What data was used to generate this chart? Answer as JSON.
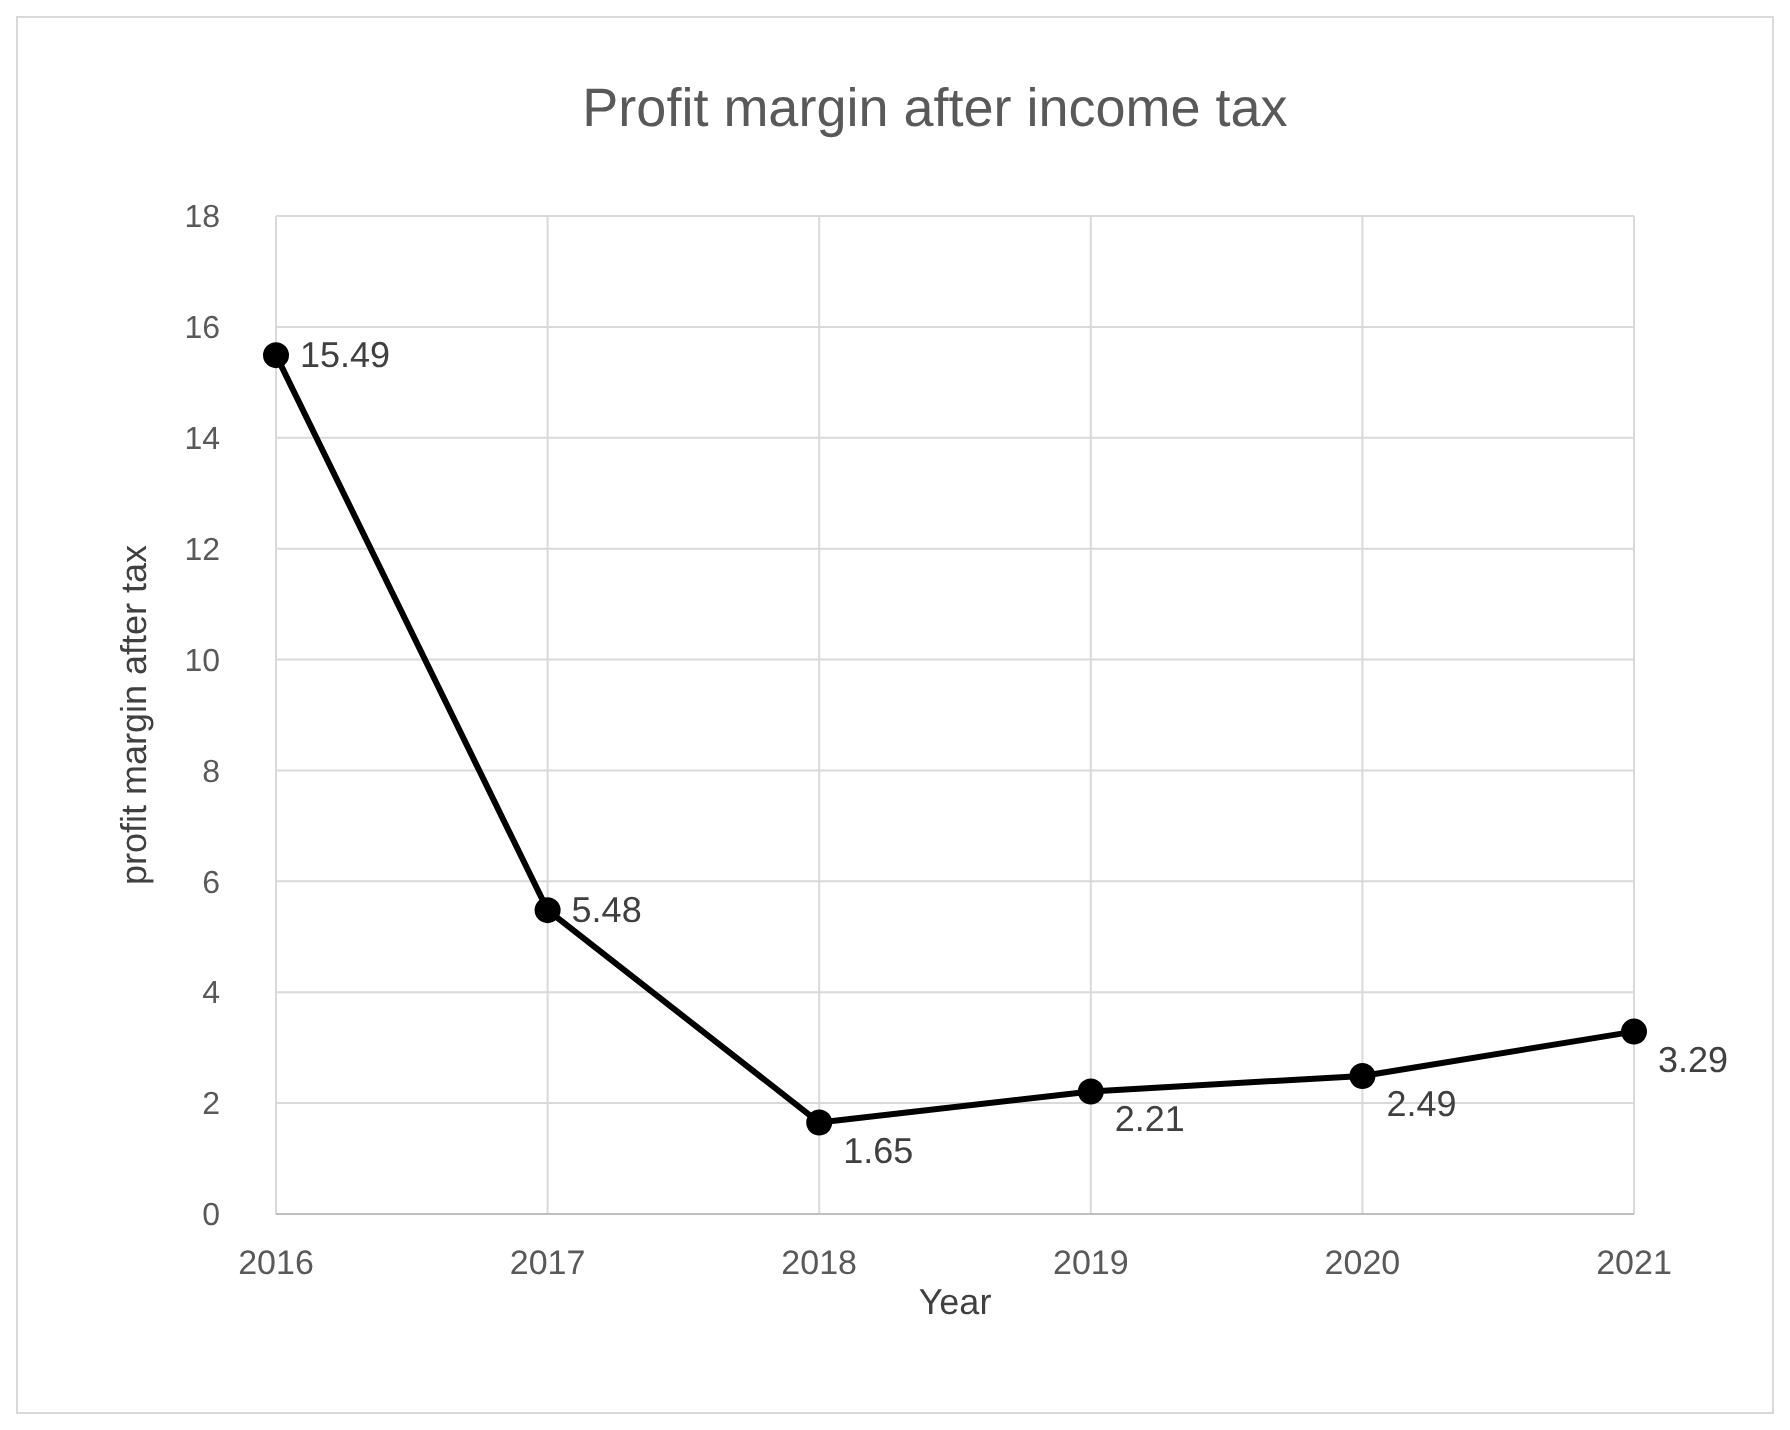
{
  "chart_data": {
    "type": "line",
    "title": "Profit margin after income tax",
    "xlabel": "Year",
    "ylabel": "profit margin after tax",
    "categories": [
      "2016",
      "2017",
      "2018",
      "2019",
      "2020",
      "2021"
    ],
    "series": [
      {
        "color": "#000000",
        "values": [
          15.49,
          5.48,
          1.65,
          2.21,
          2.49,
          3.29
        ]
      }
    ],
    "ylim": [
      0,
      18
    ],
    "yticks": [
      0,
      2,
      4,
      6,
      8,
      10,
      12,
      14,
      16,
      18
    ],
    "grid": true,
    "marker": "circle",
    "line_style": "solid",
    "data_labels": true
  }
}
